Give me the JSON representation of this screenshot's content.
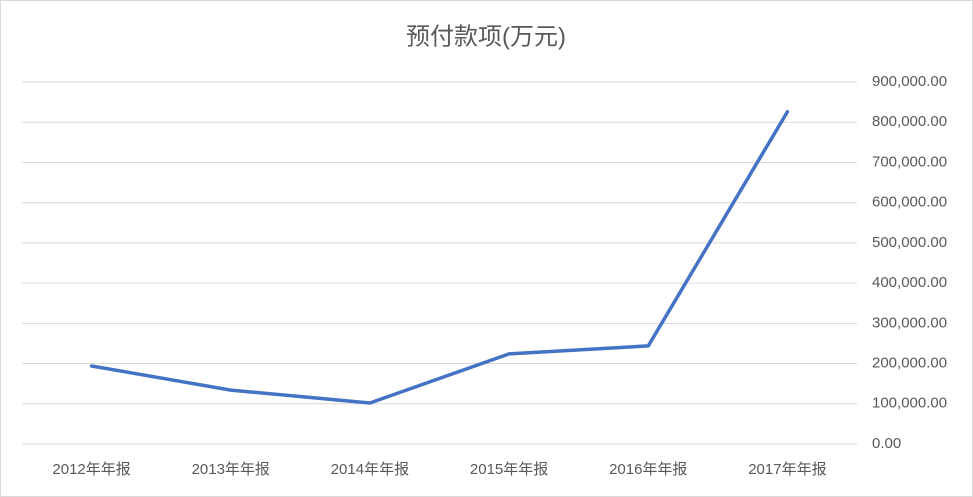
{
  "chart_data": {
    "type": "line",
    "title": "预付款项(万元)",
    "categories": [
      "2012年年报",
      "2013年年报",
      "2014年年报",
      "2015年年报",
      "2016年年报",
      "2017年年报"
    ],
    "series": [
      {
        "name": "预付款项(万元)",
        "color": "#4472c4",
        "values": [
          194000,
          134000,
          102000,
          224000,
          244000,
          826000
        ]
      }
    ],
    "ylim": [
      0,
      900000
    ],
    "yticks": [
      {
        "value": 0,
        "label": "0.00"
      },
      {
        "value": 100000,
        "label": "100,000.00"
      },
      {
        "value": 200000,
        "label": "200,000.00"
      },
      {
        "value": 300000,
        "label": "300,000.00"
      },
      {
        "value": 400000,
        "label": "400,000.00"
      },
      {
        "value": 500000,
        "label": "500,000.00"
      },
      {
        "value": 600000,
        "label": "600,000.00"
      },
      {
        "value": 700000,
        "label": "700,000.00"
      },
      {
        "value": 800000,
        "label": "800,000.00"
      },
      {
        "value": 900000,
        "label": "900,000.00"
      }
    ],
    "grid": true
  }
}
